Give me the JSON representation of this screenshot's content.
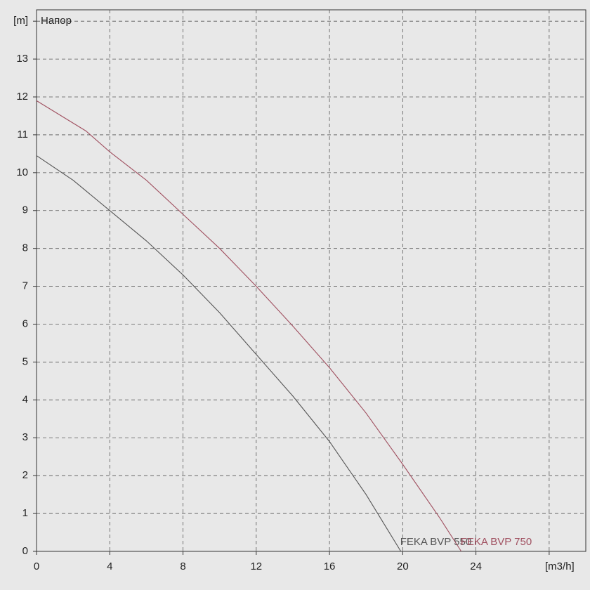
{
  "chart_data": {
    "type": "line",
    "title": "Напор",
    "xlim": [
      0,
      30
    ],
    "ylim": [
      0,
      14.3
    ],
    "xticks": [
      0,
      4,
      8,
      12,
      16,
      20,
      24,
      {
        "value": 28,
        "label": "[m3/h]"
      }
    ],
    "yticks": [
      0,
      1,
      2,
      3,
      4,
      5,
      6,
      7,
      8,
      9,
      10,
      11,
      12,
      13,
      {
        "value": 14,
        "label": "[m]"
      }
    ],
    "grid": true,
    "series": [
      {
        "name": "FEKA BVP 550",
        "color": "#555555",
        "x": [
          0,
          2,
          4,
          6,
          8,
          10,
          12,
          14,
          16,
          18,
          19.9
        ],
        "values": [
          10.45,
          9.8,
          9.0,
          8.2,
          7.3,
          6.3,
          5.2,
          4.1,
          2.9,
          1.5,
          0
        ]
      },
      {
        "name": "FEKA BVP 750",
        "color": "#a05060",
        "x": [
          0,
          2.7,
          4,
          6,
          8,
          10,
          12,
          14,
          16,
          18,
          20,
          22,
          23.2
        ],
        "values": [
          11.9,
          11.1,
          10.55,
          9.8,
          8.9,
          8.0,
          7.0,
          5.95,
          4.85,
          3.65,
          2.3,
          0.9,
          0
        ]
      }
    ]
  }
}
